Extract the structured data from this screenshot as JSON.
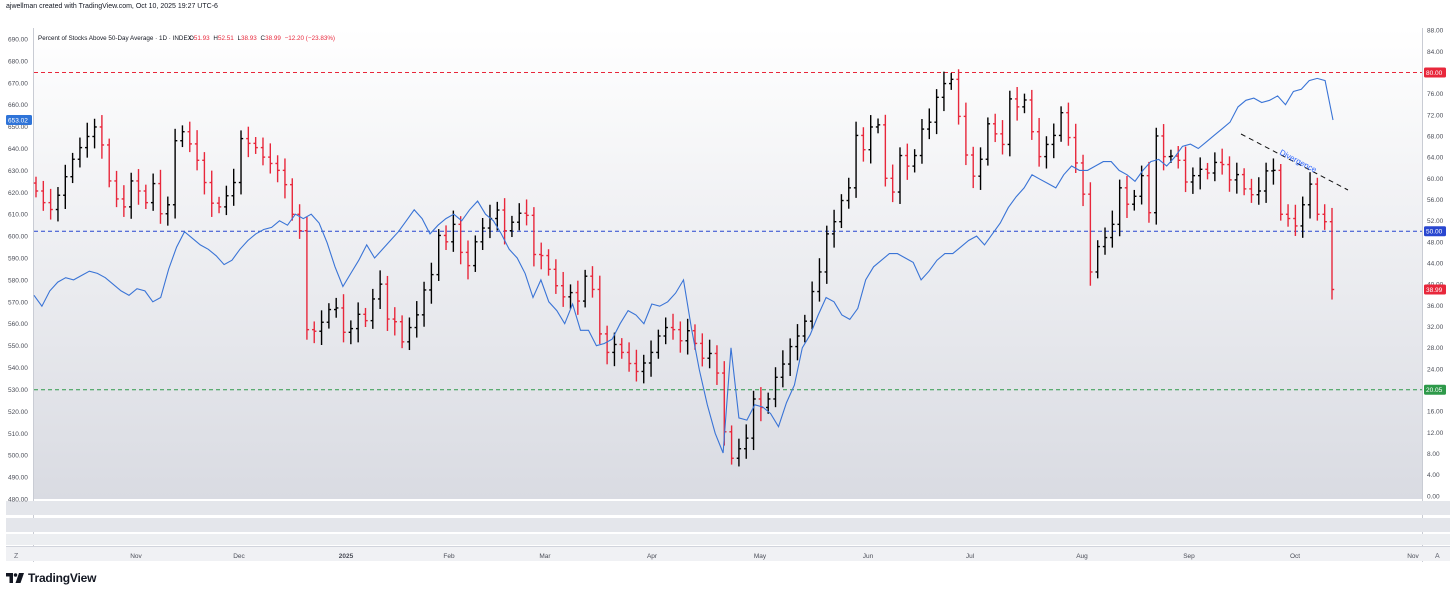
{
  "header": {
    "attribution": "ajwellman created with TradingView.com, Oct 10, 2025 19:27 UTC-6"
  },
  "legend": {
    "title": "Percent of Stocks Above 50-Day Average · 1D · INDEX",
    "o_label": "O",
    "o_value": "51.93",
    "h_label": "H",
    "h_value": "52.51",
    "l_label": "L",
    "l_value": "38.93",
    "c_label": "C",
    "c_value": "38.99",
    "change": "−12.20 (−23.83%)"
  },
  "bottom": {
    "left_btn": "Z",
    "right_btn": "A"
  },
  "brand": {
    "name": "TradingView"
  },
  "annotation": {
    "text": "Divergence",
    "color": "#2962ff"
  },
  "colors": {
    "bull": "#000000",
    "bear": "#e8273b",
    "line": "#3a74d6",
    "level_80": "#e8273b",
    "level_50": "#2947d0",
    "level_20": "#2e9a4a",
    "current_price_tag": "#2f74d8"
  },
  "chart_data": {
    "type": "ohlc_bar_with_line",
    "title": "Percent of Stocks Above 50-Day Average · 1D · INDEX",
    "x_ticks": [
      "Nov",
      "Dec",
      "2025",
      "Feb",
      "Mar",
      "Apr",
      "May",
      "Jun",
      "Jul",
      "Aug",
      "Sep",
      "Oct",
      "Nov"
    ],
    "left_axis": {
      "ylim": [
        480,
        695
      ],
      "ticks": [
        "690.00",
        "680.00",
        "670.00",
        "660.00",
        "650.00",
        "640.00",
        "630.00",
        "620.00",
        "610.00",
        "600.00",
        "590.00",
        "580.00",
        "570.00",
        "560.00",
        "550.00",
        "540.00",
        "530.00",
        "520.00",
        "510.00",
        "500.00",
        "490.00",
        "480.00"
      ],
      "current_tag": "653.02",
      "current_value": 653.02
    },
    "right_axis": {
      "ylim": [
        -0.6,
        88.4
      ],
      "ticks": [
        "88.00",
        "84.00",
        "80.00",
        "76.00",
        "72.00",
        "68.00",
        "64.00",
        "60.00",
        "56.00",
        "52.00",
        "48.00",
        "44.00",
        "40.00",
        "36.00",
        "32.00",
        "28.00",
        "24.00",
        "20.00",
        "16.00",
        "12.00",
        "8.00",
        "4.00",
        "0.00"
      ],
      "level_80": "80.00",
      "level_50": "50.00",
      "level_20": "20.05",
      "last_tag": "38.99"
    },
    "horizontal_levels": [
      80,
      50,
      20.05
    ],
    "ohlc_series_name": "Percent of Stocks Above 50-Day Average",
    "ohlc_closes": [
      57.6,
      55.4,
      54.1,
      56.8,
      60.3,
      63.6,
      65.8,
      67.9,
      69.7,
      66.3,
      59.5,
      56.1,
      54.6,
      59.5,
      57.6,
      55.4,
      59.0,
      53.3,
      55.0,
      67.1,
      68.8,
      66.5,
      63.4,
      59.2,
      55.3,
      54.6,
      56.7,
      59.2,
      67.5,
      66.6,
      65.8,
      64.0,
      62.8,
      61.5,
      58.8,
      53.2,
      50.1,
      31.4,
      31.1,
      32.8,
      35.2,
      35.5,
      30.9,
      31.6,
      34.3,
      33.1,
      37.2,
      40.0,
      33.4,
      32.9,
      29.1,
      31.8,
      34.2,
      38.9,
      41.8,
      49.2,
      48.0,
      51.3,
      46.0,
      43.5,
      48.0,
      50.6,
      52.4,
      54.0,
      50.1,
      51.7,
      53.4,
      53.0,
      45.6,
      45.4,
      42.8,
      39.7,
      37.6,
      38.4,
      36.8,
      41.5,
      39.0,
      30.6,
      27.1,
      28.6,
      27.1,
      25.0,
      23.5,
      25.1,
      27.1,
      30.2,
      31.8,
      31.4,
      29.3,
      31.2,
      28.8,
      26.0,
      26.9,
      23.2,
      12.1,
      7.1,
      8.9,
      10.9,
      18.3,
      16.7,
      18.3,
      22.4,
      24.9,
      28.2,
      30.2,
      33.0,
      38.6,
      42.3,
      49.5,
      51.8,
      55.8,
      58.2,
      68.1,
      65.4,
      69.7,
      70.1,
      60.0,
      57.4,
      64.3,
      62.3,
      64.3,
      69.3,
      70.6,
      75.3,
      77.9,
      78.7,
      71.7,
      64.4,
      60.4,
      63.6,
      70.3,
      68.4,
      66.4,
      75.0,
      73.5,
      74.8,
      68.8,
      64.1,
      66.4,
      68.1,
      72.4,
      67.7,
      62.9,
      57.0,
      42.3,
      47.1,
      48.8,
      51.3,
      58.2,
      55.1,
      56.6,
      60.5,
      53.5,
      68.0,
      64.1,
      64.2,
      63.4,
      59.3,
      60.5,
      61.7,
      61.0,
      63.0,
      62.6,
      59.7,
      60.7,
      58.0,
      56.9,
      57.6,
      61.4,
      61.5,
      53.2,
      52.4,
      51.0,
      55.0,
      58.9,
      53.2,
      51.8,
      38.99
    ],
    "line_series_name": "Price line (left scale)",
    "line_values": [
      573,
      568,
      575,
      579,
      581,
      580,
      582,
      584,
      583,
      581,
      578,
      575,
      573,
      576,
      575,
      570,
      572,
      585,
      595,
      602,
      599,
      596,
      594,
      591,
      587,
      589,
      594,
      598,
      601,
      603,
      604,
      607,
      605,
      610,
      608,
      610,
      606,
      597,
      586,
      577,
      583,
      589,
      596,
      590,
      594,
      598,
      602,
      607,
      612,
      608,
      601,
      605,
      608,
      610,
      607,
      612,
      616,
      610,
      607,
      601,
      594,
      590,
      583,
      572,
      580,
      570,
      566,
      560,
      569,
      557,
      557,
      550,
      551,
      553,
      560,
      566,
      564,
      560,
      569,
      568,
      570,
      574,
      580,
      558,
      539,
      523,
      510,
      501,
      549,
      517,
      516,
      523,
      522,
      519,
      513,
      524,
      532,
      549,
      555,
      564,
      572,
      570,
      564,
      562,
      567,
      580,
      586,
      589,
      592,
      592,
      590,
      588,
      580,
      584,
      589,
      592,
      592,
      595,
      598,
      600,
      596,
      601,
      606,
      613,
      618,
      622,
      628,
      626,
      624,
      622,
      628,
      632,
      630,
      630,
      632,
      634,
      634,
      630,
      628,
      625,
      630,
      634,
      635,
      632,
      636,
      641,
      642,
      640,
      643,
      646,
      649,
      652,
      659,
      662,
      663,
      661,
      662,
      664,
      660,
      666,
      667,
      671,
      672,
      671,
      653
    ]
  }
}
